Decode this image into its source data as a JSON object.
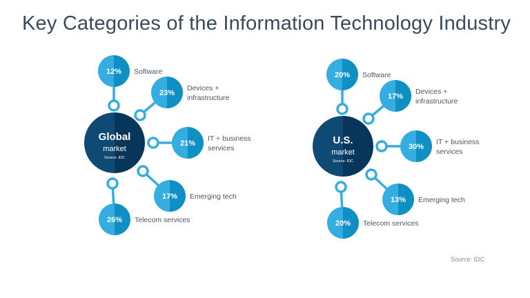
{
  "title": "Key Categories of the Information Technology Industry",
  "source": "Source: IDC",
  "colors": {
    "hub_left": "#0e4a73",
    "hub_right": "#08365a",
    "node_left": "#35ade0",
    "node_right": "#0f8fc4",
    "connector": "#35ade0"
  },
  "markets": [
    {
      "name": "Global",
      "subtitle": "market",
      "source": "Source: IDC",
      "categories": [
        {
          "label": [
            "Software"
          ],
          "value": "12%"
        },
        {
          "label": [
            "Devices +",
            "infrastructure"
          ],
          "value": "23%"
        },
        {
          "label": [
            "IT + business",
            "services"
          ],
          "value": "21%"
        },
        {
          "label": [
            "Emerging tech"
          ],
          "value": "17%"
        },
        {
          "label": [
            "Telecom services"
          ],
          "value": "26%"
        }
      ]
    },
    {
      "name": "U.S.",
      "subtitle": "market",
      "source": "Source: IDC",
      "categories": [
        {
          "label": [
            "Software"
          ],
          "value": "20%"
        },
        {
          "label": [
            "Devices +",
            "infrastructure"
          ],
          "value": "17%"
        },
        {
          "label": [
            "IT + business",
            "services"
          ],
          "value": "30%"
        },
        {
          "label": [
            "Emerging tech"
          ],
          "value": "13%"
        },
        {
          "label": [
            "Telecom services"
          ],
          "value": "20%"
        }
      ]
    }
  ]
}
